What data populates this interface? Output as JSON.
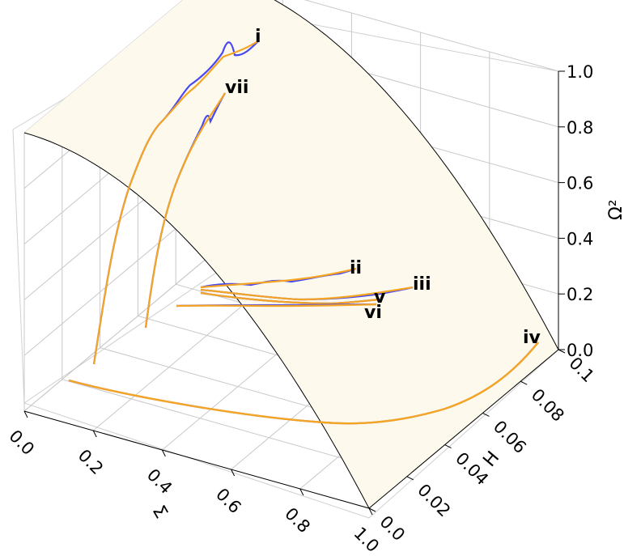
{
  "chart_data": {
    "type": "line",
    "projection": "3d",
    "title": "",
    "xlabel": "Σ",
    "ylabel": "H",
    "zlabel": "Ω²",
    "xlim": [
      0,
      1
    ],
    "ylim": [
      0,
      0.1
    ],
    "zlim": [
      0,
      1
    ],
    "xticks": [
      "0.0",
      "0.2",
      "0.4",
      "0.6",
      "0.8",
      "1.0"
    ],
    "yticks": [
      "0.0",
      "0.02",
      "0.04",
      "0.06",
      "0.08",
      "0.1"
    ],
    "zticks": [
      "0.0",
      "0.2",
      "0.4",
      "0.6",
      "0.8",
      "1.0"
    ],
    "grid": true,
    "surface": {
      "name": "Ω² = 1 − Σ²",
      "color": "#fffbeb",
      "edge_color": "#000000"
    },
    "colors": {
      "series_primary": "#4747f5",
      "series_overlay": "#f5a524"
    },
    "series": [
      {
        "name": "i",
        "end": [
          0.0,
          0.1,
          1.0
        ],
        "points": [
          [
            0.08,
            0.003,
            0.04
          ],
          [
            0.06,
            0.025,
            0.48
          ],
          [
            0.04,
            0.05,
            0.7
          ],
          [
            0.02,
            0.075,
            0.87
          ],
          [
            0.0,
            0.1,
            1.0
          ]
        ]
      },
      {
        "name": "vii",
        "end": [
          0.0,
          0.065,
          1.0
        ],
        "points": [
          [
            0.09,
            0.003,
            0.04
          ],
          [
            0.07,
            0.02,
            0.55
          ],
          [
            0.04,
            0.04,
            0.8
          ],
          [
            0.02,
            0.055,
            0.93
          ],
          [
            0.0,
            0.065,
            1.0
          ]
        ]
      },
      {
        "name": "ii",
        "end": [
          0.0,
          0.1,
          0.33
        ],
        "points": [
          [
            0.6,
            0.0,
            0.19
          ],
          [
            0.45,
            0.025,
            0.22
          ],
          [
            0.3,
            0.05,
            0.26
          ],
          [
            0.15,
            0.075,
            0.3
          ],
          [
            0.0,
            0.1,
            0.33
          ]
        ]
      },
      {
        "name": "iii",
        "end": [
          0.0,
          0.1,
          0.21
        ],
        "points": [
          [
            0.6,
            0.0,
            0.19
          ],
          [
            0.45,
            0.025,
            0.2
          ],
          [
            0.3,
            0.05,
            0.2
          ],
          [
            0.15,
            0.075,
            0.21
          ],
          [
            0.0,
            0.1,
            0.21
          ]
        ]
      },
      {
        "name": "v",
        "end": [
          0.0,
          0.09,
          0.22
        ],
        "points": [
          [
            0.6,
            0.0,
            0.19
          ],
          [
            0.45,
            0.022,
            0.2
          ],
          [
            0.3,
            0.045,
            0.21
          ],
          [
            0.15,
            0.067,
            0.21
          ],
          [
            0.0,
            0.09,
            0.22
          ]
        ]
      },
      {
        "name": "vi",
        "end": [
          0.0,
          0.09,
          0.18
        ],
        "points": [
          [
            0.8,
            0.0,
            0.13
          ],
          [
            0.6,
            0.022,
            0.15
          ],
          [
            0.4,
            0.045,
            0.16
          ],
          [
            0.2,
            0.067,
            0.17
          ],
          [
            0.0,
            0.09,
            0.18
          ]
        ]
      },
      {
        "name": "iv",
        "end": [
          0.0,
          0.1,
          0.02
        ],
        "points": [
          [
            0.03,
            0.0,
            0.02
          ],
          [
            0.4,
            0.0,
            0.01
          ],
          [
            0.7,
            0.01,
            0.01
          ],
          [
            0.85,
            0.04,
            0.01
          ],
          [
            0.0,
            0.1,
            0.02
          ]
        ]
      }
    ]
  }
}
